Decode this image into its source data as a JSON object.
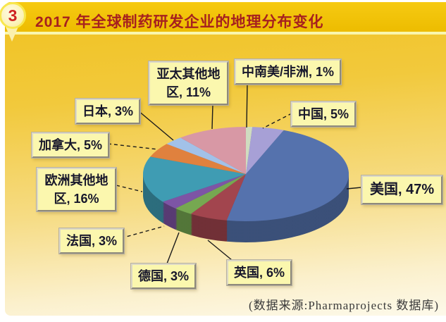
{
  "page": {
    "badge_number": "3",
    "banner_title": "2017 年全球制药研发企业的地理分布变化",
    "source_note": "(数据来源:Pharmaprojects 数据库)"
  },
  "theme_colors": {
    "banner_text": "#a6201f",
    "gold_header": "#f0c000",
    "cream_bottom": "#fdf9ea",
    "label_box_bg": "#fbf7ae",
    "leader_line": "#1b1b1b"
  },
  "chart_data": {
    "type": "pie",
    "style": "3d-exploded-none",
    "title": "2017 年全球制药研发企业的地理分布变化",
    "unit": "%",
    "total": 100,
    "start_angle_deg": 0,
    "direction": "clockwise",
    "legend_position": "callout-labels",
    "slices": [
      {
        "id": "central-south-america-africa",
        "label": "中南美/非洲",
        "value": 1,
        "callout": "中南美/非洲, 1%",
        "color": "#cfdcc0"
      },
      {
        "id": "china",
        "label": "中国",
        "value": 5,
        "callout": "中国, 5%",
        "color": "#a7a0d6"
      },
      {
        "id": "usa",
        "label": "美国",
        "value": 47,
        "callout": "美国, 47%",
        "color": "#5572ad"
      },
      {
        "id": "uk",
        "label": "英国",
        "value": 6,
        "callout": "英国, 6%",
        "color": "#a2454e"
      },
      {
        "id": "germany",
        "label": "德国",
        "value": 3,
        "callout": "德国, 3%",
        "color": "#76a851"
      },
      {
        "id": "france",
        "label": "法国",
        "value": 3,
        "callout": "法国, 3%",
        "color": "#7d55a5"
      },
      {
        "id": "other-europe",
        "label": "欧洲其他地区",
        "value": 16,
        "callout": "欧洲其他地区, 16%",
        "color": "#3f9cb3"
      },
      {
        "id": "canada",
        "label": "加拿大",
        "value": 5,
        "callout": "加拿大, 5%",
        "color": "#e0813e"
      },
      {
        "id": "japan",
        "label": "日本",
        "value": 3,
        "callout": "日本, 3%",
        "color": "#a2c1e8"
      },
      {
        "id": "other-asia-pacific",
        "label": "亚太其他地区",
        "value": 11,
        "callout": "亚太其他地区, 11%",
        "color": "#d898a5"
      }
    ]
  }
}
